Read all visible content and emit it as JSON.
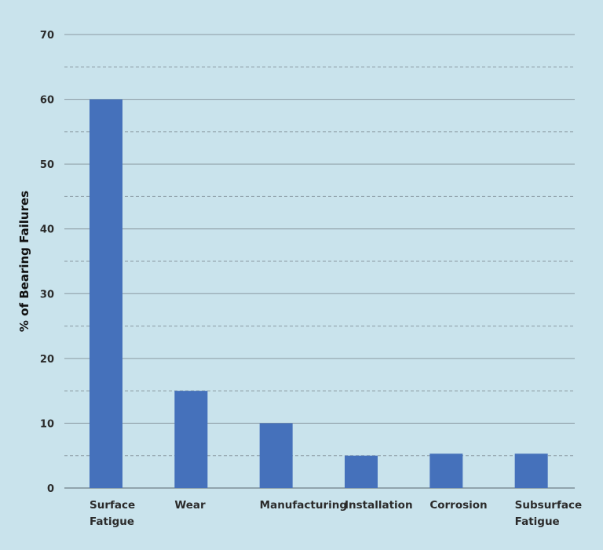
{
  "chart_data": {
    "type": "bar",
    "title": "",
    "xlabel": "",
    "ylabel": "% of Bearing Failures",
    "categories": [
      [
        "Surface",
        "Fatigue"
      ],
      [
        "Wear"
      ],
      [
        "Manufacturing"
      ],
      [
        "Installation"
      ],
      [
        "Corrosion"
      ],
      [
        "Subsurface",
        "Fatigue"
      ]
    ],
    "values": [
      60,
      15,
      10,
      5,
      5.3,
      5.3
    ],
    "ylim": [
      0,
      70
    ],
    "yticks": [
      0,
      10,
      20,
      30,
      40,
      50,
      60,
      70
    ],
    "grid": {
      "major": "solid",
      "minor": "dashed",
      "minor_step": 5
    },
    "legend": "none",
    "colors": {
      "bar": "#4571bb",
      "grid": "#8a9aa2",
      "background": "#c9e3ec"
    }
  }
}
